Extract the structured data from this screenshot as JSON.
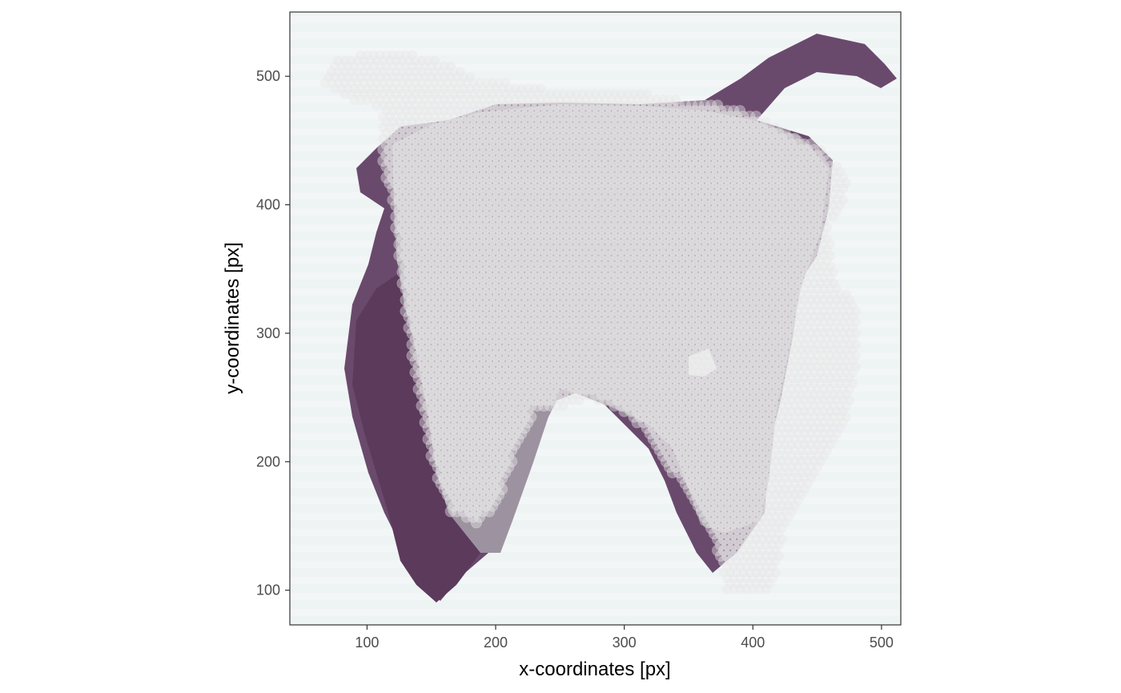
{
  "chart_data": {
    "type": "scatter",
    "description_layers": [
      "tissue-histology-image",
      "spot-grid"
    ],
    "xlabel": "x-coordinates [px]",
    "ylabel": "y-coordinates [px]",
    "xlim": [
      40,
      515
    ],
    "ylim": [
      73,
      550
    ],
    "x_ticks": [
      100,
      200,
      300,
      400,
      500
    ],
    "y_ticks": [
      100,
      200,
      300,
      400,
      500
    ],
    "x_tick_labels": [
      "100",
      "200",
      "300",
      "400",
      "500"
    ],
    "y_tick_labels": [
      "100",
      "200",
      "300",
      "400",
      "500"
    ],
    "grid": false,
    "legend": "none",
    "spot_spacing": 5,
    "spot_color": "#e6e6e6",
    "tissue_colors": {
      "lumen": "#9b8f9e",
      "stroma": "#5e3f5f",
      "background": "#eef3f4"
    }
  }
}
